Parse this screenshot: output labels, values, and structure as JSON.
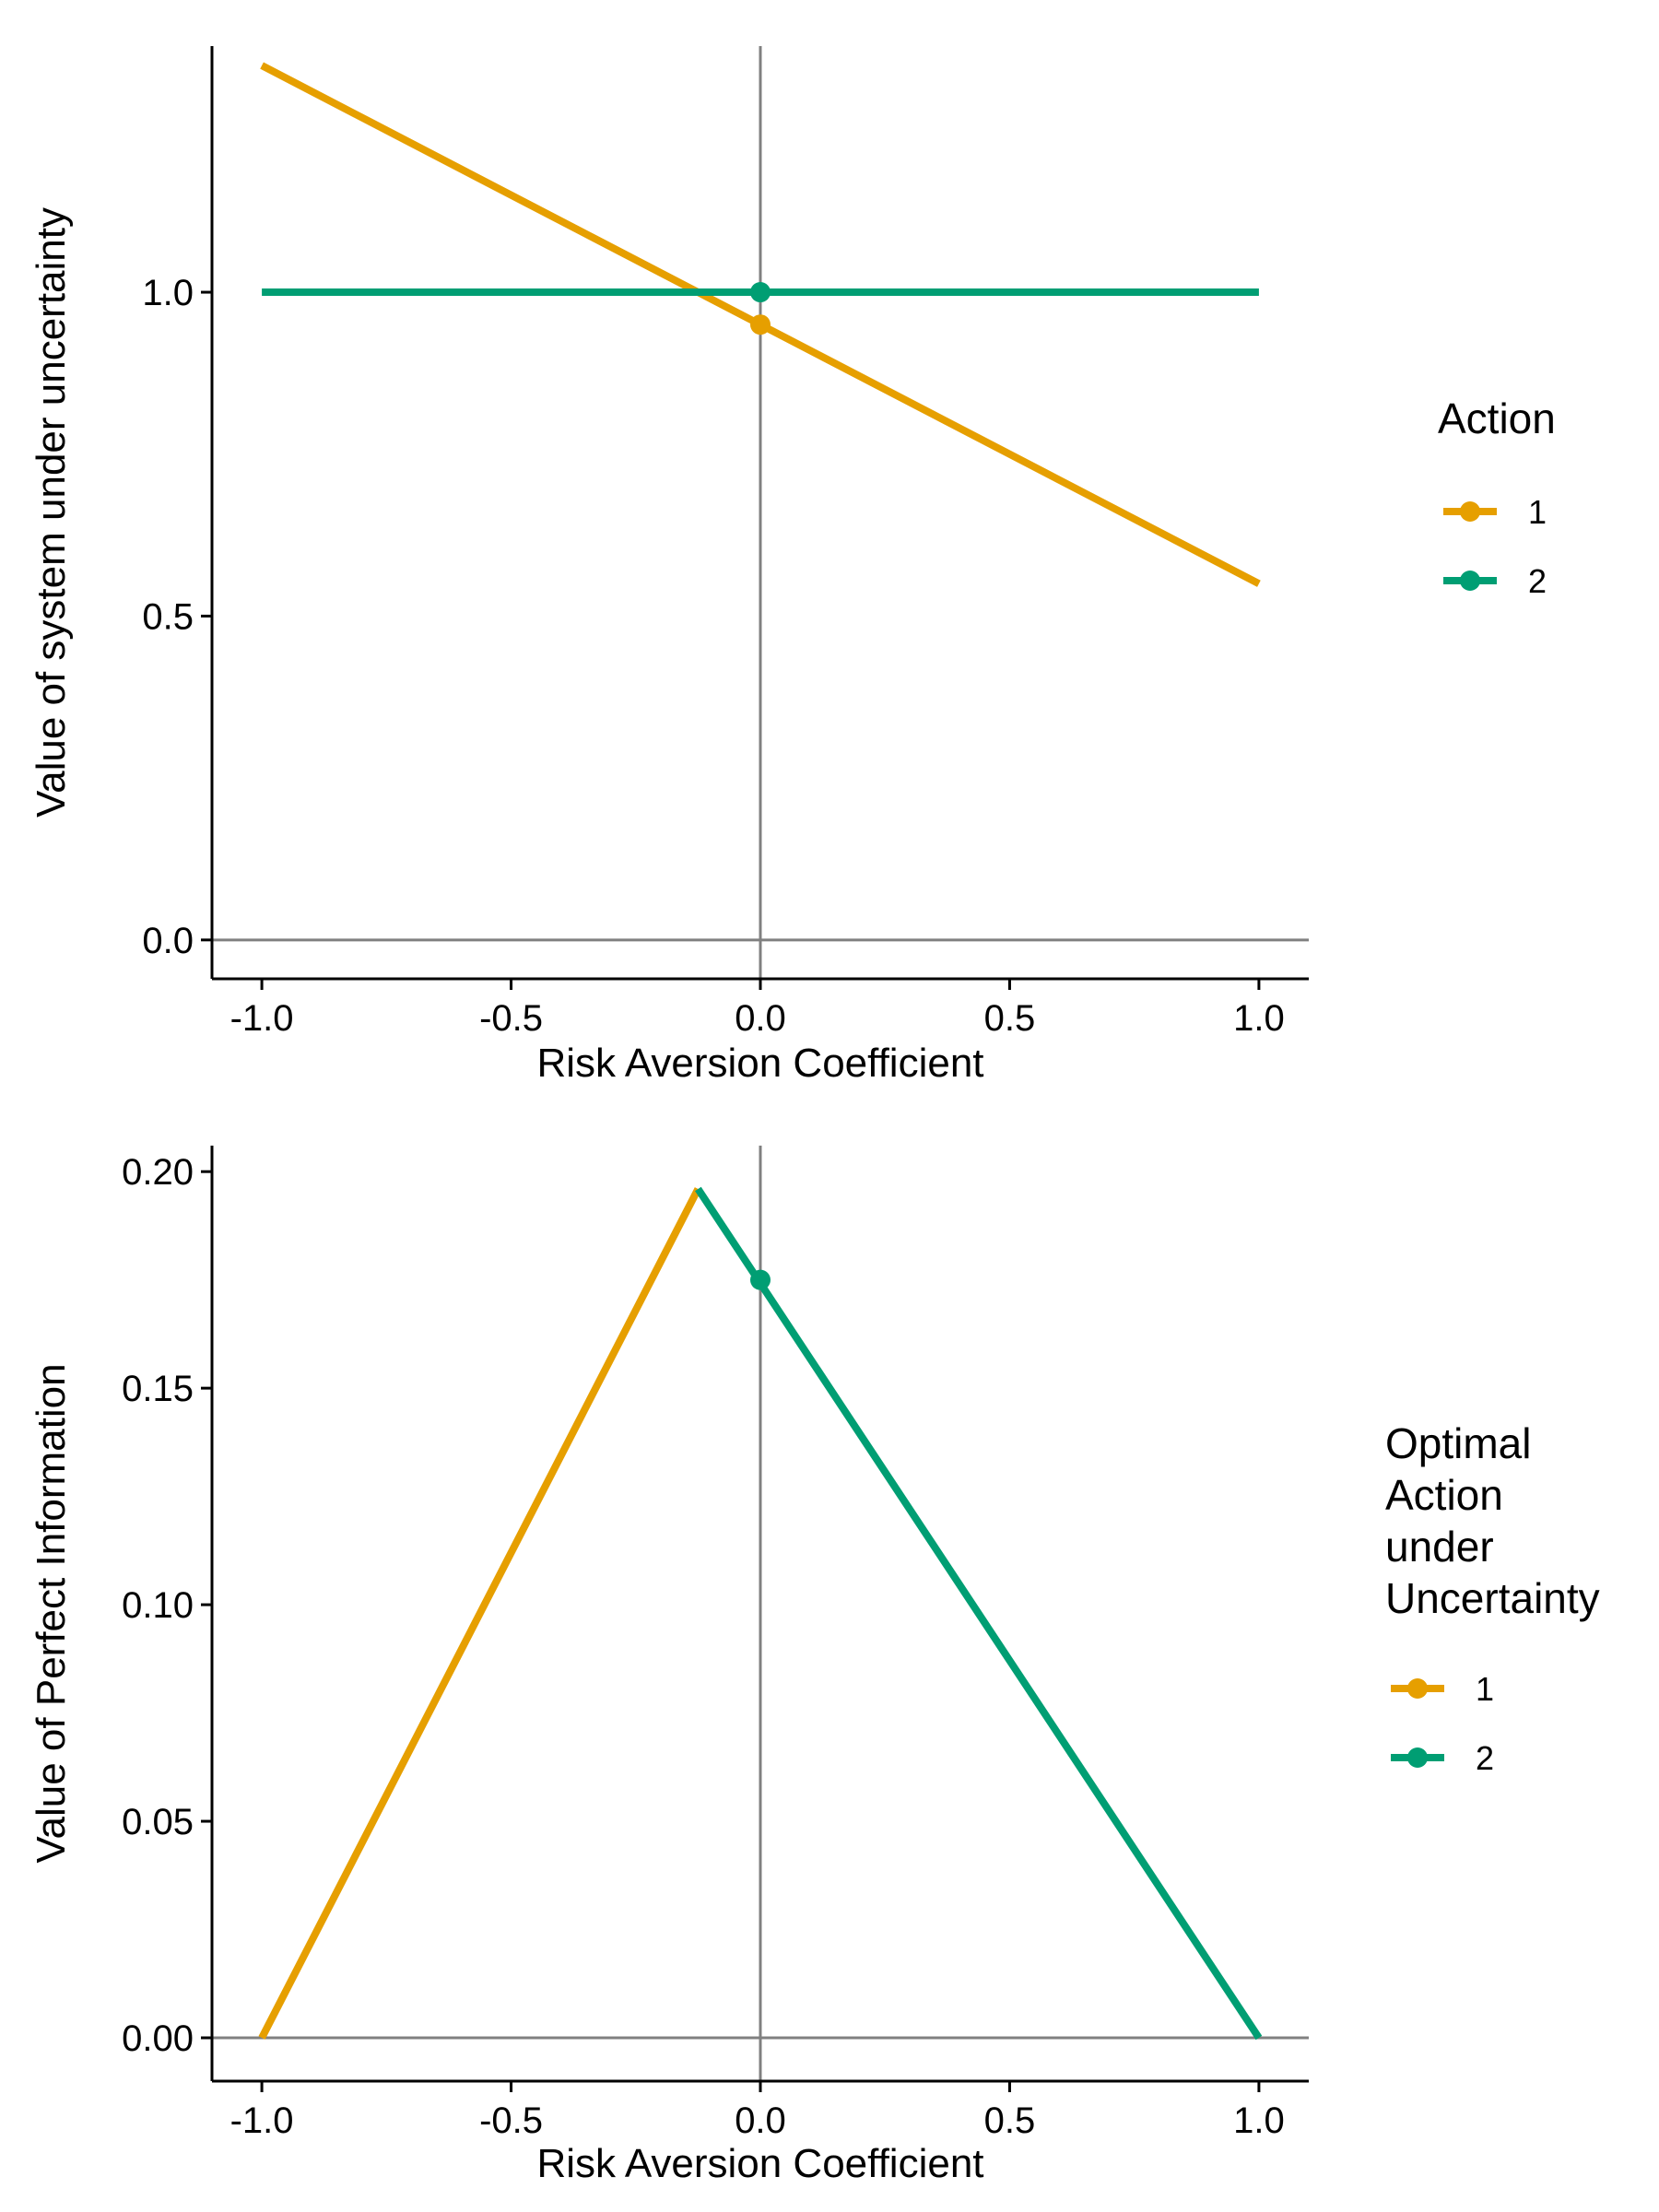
{
  "chart_data": [
    {
      "type": "line",
      "xlabel": "Risk Aversion Coefficient",
      "ylabel": "Value of system under uncertainty",
      "xlim": [
        -1.1,
        1.1
      ],
      "ylim": [
        -0.06,
        1.38
      ],
      "x_ticks": [
        -1.0,
        -0.5,
        0.0,
        0.5,
        1.0
      ],
      "x_tick_labels": [
        "-1.0",
        "-0.5",
        "0.0",
        "0.5",
        "1.0"
      ],
      "y_ticks": [
        0.0,
        0.5,
        1.0
      ],
      "y_tick_labels": [
        "0.0",
        "0.5",
        "1.0"
      ],
      "reference_lines": {
        "x": 0,
        "y": 0
      },
      "grid": false,
      "legend": {
        "title": "Action",
        "placement": "right"
      },
      "series": [
        {
          "name": "1",
          "color": "#E69F00",
          "x": [
            -1.0,
            1.0
          ],
          "y": [
            1.35,
            0.55
          ]
        },
        {
          "name": "2",
          "color": "#009E73",
          "x": [
            -1.0,
            1.0
          ],
          "y": [
            1.0,
            1.0
          ]
        }
      ],
      "points": [
        {
          "series": "1",
          "x": 0.0,
          "y": 0.95
        },
        {
          "series": "2",
          "x": 0.0,
          "y": 1.0
        }
      ]
    },
    {
      "type": "line",
      "xlabel": "Risk Aversion Coefficient",
      "ylabel": "Value of Perfect Information",
      "xlim": [
        -1.1,
        1.1
      ],
      "ylim": [
        -0.01,
        0.206
      ],
      "x_ticks": [
        -1.0,
        -0.5,
        0.0,
        0.5,
        1.0
      ],
      "x_tick_labels": [
        "-1.0",
        "-0.5",
        "0.0",
        "0.5",
        "1.0"
      ],
      "y_ticks": [
        0.0,
        0.05,
        0.1,
        0.15,
        0.2
      ],
      "y_tick_labels": [
        "0.00",
        "0.05",
        "0.10",
        "0.15",
        "0.20"
      ],
      "reference_lines": {
        "x": 0,
        "y": 0
      },
      "grid": false,
      "legend": {
        "title": [
          "Optimal",
          "Action",
          "under",
          "Uncertainty"
        ],
        "placement": "right"
      },
      "series": [
        {
          "name": "1",
          "color": "#E69F00",
          "x": [
            -1.0,
            -0.125
          ],
          "y": [
            0.0,
            0.196
          ]
        },
        {
          "name": "2",
          "color": "#009E73",
          "x": [
            -0.125,
            1.0
          ],
          "y": [
            0.196,
            0.0
          ]
        }
      ],
      "points": [
        {
          "series": "2",
          "x": 0.0,
          "y": 0.175
        }
      ]
    }
  ]
}
